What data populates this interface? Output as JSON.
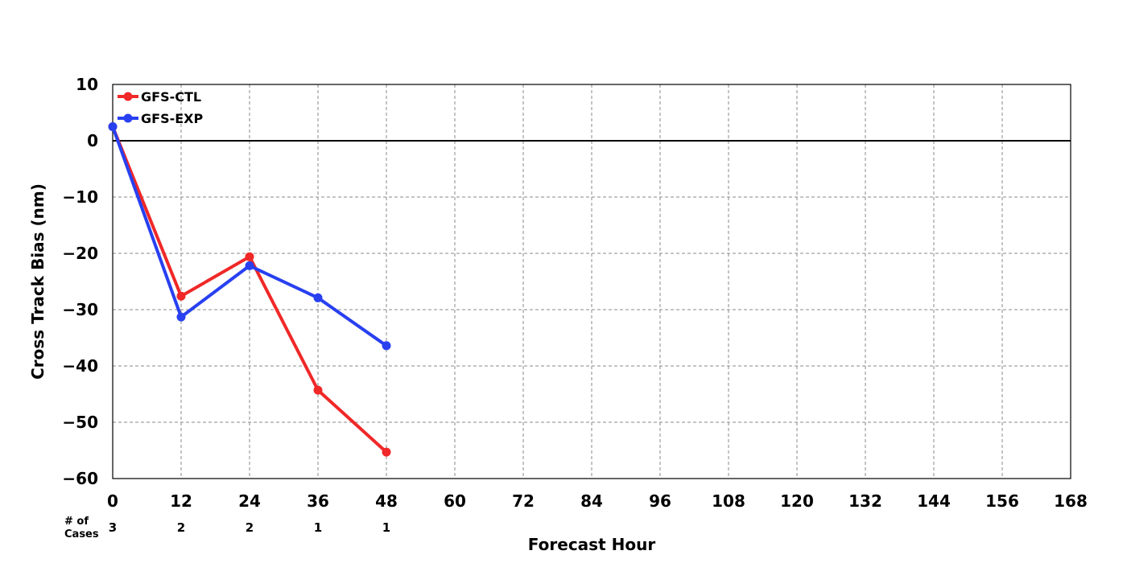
{
  "chart_data": {
    "type": "line",
    "title": "",
    "xlabel": "Forecast Hour",
    "ylabel": "Cross Track Bias (nm)",
    "xlim": [
      0,
      168
    ],
    "ylim": [
      -60,
      10
    ],
    "x_ticks": [
      0,
      12,
      24,
      36,
      48,
      60,
      72,
      84,
      96,
      108,
      120,
      132,
      144,
      156,
      168
    ],
    "x_tick_labels": [
      "0",
      "12",
      "24",
      "36",
      "48",
      "60",
      "72",
      "84",
      "96",
      "108",
      "120",
      "132",
      "144",
      "156",
      "168"
    ],
    "y_ticks": [
      10,
      0,
      -10,
      -20,
      -30,
      -40,
      -50,
      -60
    ],
    "y_tick_labels": [
      "10",
      "0",
      "−10",
      "−20",
      "−30",
      "−40",
      "−50",
      "−60"
    ],
    "grid": true,
    "zero_line": true,
    "legend_position": "top-left",
    "x": [
      0,
      12,
      24,
      36,
      48
    ],
    "series": [
      {
        "name": "GFS-CTL",
        "color": "#f02828",
        "values": [
          2.5,
          -27.6,
          -20.6,
          -44.3,
          -55.3
        ]
      },
      {
        "name": "GFS-EXP",
        "color": "#2840f0",
        "values": [
          2.5,
          -31.3,
          -22.2,
          -27.9,
          -36.4
        ]
      }
    ],
    "cases": {
      "label_line1": "# of",
      "label_line2": "Cases",
      "x": [
        0,
        12,
        24,
        36,
        48
      ],
      "values": [
        "3",
        "2",
        "2",
        "1",
        "1"
      ]
    }
  }
}
